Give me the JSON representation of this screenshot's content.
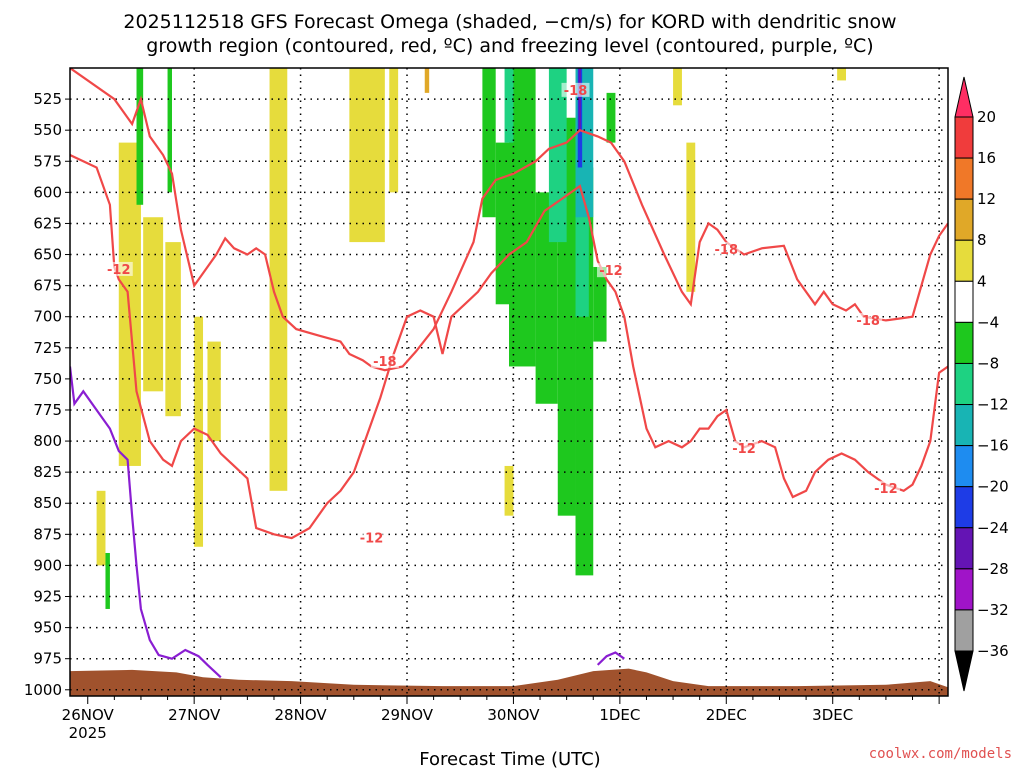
{
  "title_line1": "2025112518 GFS Forecast Omega (shaded, −cm/s) for KORD with dendritic snow",
  "title_line2": "growth region (contoured, red, ºC) and freezing level (contoured, purple, ºC)",
  "credit": "coolwx.com/models",
  "chart_data": {
    "type": "heatmap",
    "xlabel": "Forecast Time (UTC)",
    "ylabel": "",
    "x_ticks": [
      "26NOV",
      "27NOV",
      "28NOV",
      "29NOV",
      "30NOV",
      "1DEC",
      "2DEC",
      "3DEC"
    ],
    "x_year": "2025",
    "xlim_hours": [
      -4,
      194
    ],
    "y_ticks": [
      525,
      550,
      575,
      600,
      625,
      650,
      675,
      700,
      725,
      750,
      775,
      800,
      825,
      850,
      875,
      900,
      925,
      950,
      975,
      1000
    ],
    "ylim": [
      1005,
      500
    ],
    "grid": true,
    "colorbar": {
      "labels": [
        "20",
        "16",
        "12",
        "8",
        "4",
        "−4",
        "−8",
        "−12",
        "−16",
        "−20",
        "−24",
        "−28",
        "−32",
        "−36"
      ],
      "colors": [
        "#ff2e63",
        "#f03c3c",
        "#f07828",
        "#e0a828",
        "#e6dc3c",
        "#ffffff",
        "#1ec81e",
        "#1ed282",
        "#18b4b4",
        "#1e8cf0",
        "#1e3ce6",
        "#6414b4",
        "#a014c8",
        "#a0a0a0",
        "#000000"
      ]
    },
    "omega_shading": [
      {
        "value": 4,
        "color": "#e6dc3c",
        "regions": [
          {
            "t0": 7,
            "t1": 12,
            "top": 560,
            "bottom": 820
          },
          {
            "t0": 12.5,
            "t1": 17,
            "top": 620,
            "bottom": 760
          },
          {
            "t0": 17.5,
            "t1": 21,
            "top": 640,
            "bottom": 780
          },
          {
            "t0": 2,
            "t1": 4,
            "top": 840,
            "bottom": 900
          },
          {
            "t0": 24,
            "t1": 26,
            "top": 700,
            "bottom": 885
          },
          {
            "t0": 27,
            "t1": 30,
            "top": 720,
            "bottom": 800
          },
          {
            "t0": 41,
            "t1": 45,
            "top": 500,
            "bottom": 840
          },
          {
            "t0": 59,
            "t1": 67,
            "top": 500,
            "bottom": 640
          },
          {
            "t0": 68,
            "t1": 70,
            "top": 500,
            "bottom": 600
          },
          {
            "t0": 94,
            "t1": 96,
            "top": 820,
            "bottom": 860
          },
          {
            "t0": 132,
            "t1": 134,
            "top": 500,
            "bottom": 530
          },
          {
            "t0": 135,
            "t1": 137,
            "top": 560,
            "bottom": 680
          },
          {
            "t0": 169,
            "t1": 171,
            "top": 500,
            "bottom": 510
          }
        ]
      },
      {
        "value": 8,
        "color": "#e0a828",
        "regions": [
          {
            "t0": 76,
            "t1": 77,
            "top": 500,
            "bottom": 520
          }
        ]
      },
      {
        "value": -4,
        "color": "#1ec81e",
        "regions": [
          {
            "t0": 11,
            "t1": 12.5,
            "top": 500,
            "bottom": 610
          },
          {
            "t0": 18,
            "t1": 19,
            "top": 500,
            "bottom": 600
          },
          {
            "t0": 4,
            "t1": 5,
            "top": 890,
            "bottom": 935
          },
          {
            "t0": 89,
            "t1": 92,
            "top": 500,
            "bottom": 620
          },
          {
            "t0": 92,
            "t1": 95,
            "top": 560,
            "bottom": 690
          },
          {
            "t0": 95,
            "t1": 101,
            "top": 500,
            "bottom": 740
          },
          {
            "t0": 101,
            "t1": 106,
            "top": 600,
            "bottom": 770
          },
          {
            "t0": 106,
            "t1": 110,
            "top": 540,
            "bottom": 860
          },
          {
            "t0": 110,
            "t1": 114,
            "top": 580,
            "bottom": 908
          },
          {
            "t0": 114,
            "t1": 117,
            "top": 660,
            "bottom": 720
          },
          {
            "t0": 117,
            "t1": 119,
            "top": 520,
            "bottom": 560
          }
        ]
      },
      {
        "value": -8,
        "color": "#1ed282",
        "regions": [
          {
            "t0": 94,
            "t1": 96,
            "top": 500,
            "bottom": 560
          },
          {
            "t0": 104,
            "t1": 108,
            "top": 500,
            "bottom": 640
          },
          {
            "t0": 110,
            "t1": 113,
            "top": 560,
            "bottom": 700
          }
        ]
      },
      {
        "value": -12,
        "color": "#18b4b4",
        "regions": [
          {
            "t0": 110,
            "t1": 114,
            "top": 500,
            "bottom": 620
          }
        ]
      },
      {
        "value": -20,
        "color": "#1e3ce6",
        "regions": [
          {
            "t0": 110.5,
            "t1": 111.5,
            "top": 500,
            "bottom": 580
          }
        ]
      },
      {
        "value": -28,
        "color": "#6414b4",
        "regions": [
          {
            "t0": 110.7,
            "t1": 111.2,
            "top": 500,
            "bottom": 550
          }
        ]
      }
    ],
    "contours": [
      {
        "label": "-18",
        "color": "#f04848",
        "points": [
          [
            -4,
            500
          ],
          [
            6,
            525
          ],
          [
            10,
            545
          ],
          [
            12,
            525
          ],
          [
            14,
            555
          ],
          [
            17,
            570
          ],
          [
            19,
            585
          ],
          [
            21,
            630
          ],
          [
            24,
            675
          ],
          [
            26,
            665
          ],
          [
            29,
            650
          ],
          [
            31,
            637
          ],
          [
            33,
            645
          ],
          [
            36,
            650
          ],
          [
            38,
            645
          ],
          [
            40,
            650
          ],
          [
            42,
            680
          ],
          [
            44,
            700
          ],
          [
            47,
            710
          ],
          [
            52,
            715
          ],
          [
            57,
            720
          ],
          [
            59,
            730
          ],
          [
            62,
            735
          ],
          [
            64,
            740
          ],
          [
            67,
            743
          ],
          [
            71,
            740
          ],
          [
            74,
            728
          ],
          [
            78,
            710
          ],
          [
            82,
            680
          ],
          [
            87,
            640
          ],
          [
            89,
            605
          ],
          [
            92,
            590
          ],
          [
            96,
            585
          ],
          [
            101,
            575
          ],
          [
            104,
            565
          ],
          [
            108,
            560
          ],
          [
            111,
            550
          ],
          [
            115,
            555
          ],
          [
            118,
            560
          ],
          [
            121,
            575
          ],
          [
            125,
            610
          ],
          [
            130,
            650
          ],
          [
            134,
            680
          ],
          [
            136,
            690
          ],
          [
            138,
            640
          ],
          [
            140,
            625
          ],
          [
            142,
            630
          ],
          [
            144,
            640
          ],
          [
            148,
            650
          ],
          [
            152,
            645
          ],
          [
            157,
            643
          ],
          [
            160,
            670
          ],
          [
            164,
            690
          ],
          [
            166,
            680
          ],
          [
            168,
            690
          ],
          [
            171,
            695
          ],
          [
            173,
            690
          ],
          [
            175,
            700
          ],
          [
            180,
            703
          ],
          [
            186,
            700
          ],
          [
            188,
            675
          ],
          [
            190,
            650
          ],
          [
            192,
            635
          ],
          [
            194,
            625
          ]
        ]
      },
      {
        "label": "-12",
        "color": "#f04848",
        "points": [
          [
            -4,
            570
          ],
          [
            2,
            580
          ],
          [
            5,
            610
          ],
          [
            6,
            660
          ],
          [
            7,
            670
          ],
          [
            9,
            680
          ],
          [
            11,
            760
          ],
          [
            14,
            800
          ],
          [
            17,
            815
          ],
          [
            19,
            820
          ],
          [
            21,
            800
          ],
          [
            24,
            790
          ],
          [
            27,
            795
          ],
          [
            30,
            810
          ],
          [
            33,
            820
          ],
          [
            36,
            830
          ],
          [
            38,
            870
          ],
          [
            42,
            875
          ],
          [
            46,
            878
          ],
          [
            50,
            870
          ],
          [
            54,
            850
          ],
          [
            57,
            840
          ],
          [
            60,
            825
          ],
          [
            63,
            795
          ],
          [
            66,
            765
          ],
          [
            69,
            730
          ],
          [
            72,
            700
          ],
          [
            75,
            695
          ],
          [
            78,
            700
          ],
          [
            80,
            730
          ],
          [
            82,
            700
          ],
          [
            85,
            690
          ],
          [
            88,
            680
          ],
          [
            91,
            665
          ],
          [
            95,
            650
          ],
          [
            99,
            640
          ],
          [
            103,
            615
          ],
          [
            107,
            605
          ],
          [
            111,
            595
          ],
          [
            113,
            620
          ],
          [
            115,
            655
          ],
          [
            117,
            670
          ],
          [
            119,
            680
          ],
          [
            121,
            700
          ],
          [
            123,
            740
          ],
          [
            126,
            790
          ],
          [
            128,
            805
          ],
          [
            131,
            800
          ],
          [
            134,
            805
          ],
          [
            136,
            800
          ],
          [
            138,
            790
          ],
          [
            140,
            790
          ],
          [
            142,
            780
          ],
          [
            144,
            775
          ],
          [
            146,
            800
          ],
          [
            148,
            805
          ],
          [
            152,
            800
          ],
          [
            155,
            805
          ],
          [
            157,
            830
          ],
          [
            159,
            845
          ],
          [
            162,
            840
          ],
          [
            164,
            825
          ],
          [
            167,
            815
          ],
          [
            170,
            810
          ],
          [
            173,
            815
          ],
          [
            176,
            825
          ],
          [
            180,
            835
          ],
          [
            184,
            840
          ],
          [
            186,
            835
          ],
          [
            188,
            820
          ],
          [
            190,
            800
          ],
          [
            192,
            745
          ],
          [
            194,
            740
          ]
        ]
      },
      {
        "label": "",
        "color": "#8a1ed2",
        "points": [
          [
            -4,
            740
          ],
          [
            -3,
            770
          ],
          [
            -1,
            760
          ],
          [
            2,
            775
          ],
          [
            5,
            790
          ],
          [
            7,
            808
          ],
          [
            9,
            815
          ],
          [
            10,
            860
          ],
          [
            11,
            900
          ],
          [
            12,
            935
          ],
          [
            14,
            960
          ],
          [
            16,
            972
          ],
          [
            19,
            975
          ],
          [
            22,
            968
          ],
          [
            25,
            973
          ],
          [
            27,
            980
          ],
          [
            30,
            990
          ]
        ]
      },
      {
        "label": "",
        "color": "#8a1ed2",
        "points": [
          [
            115,
            980
          ],
          [
            117,
            973
          ],
          [
            119,
            970
          ],
          [
            121,
            975
          ]
        ]
      }
    ],
    "terrain_color": "#a0522d",
    "terrain_surface_hpa": [
      [
        -4,
        985
      ],
      [
        10,
        984
      ],
      [
        20,
        986
      ],
      [
        26,
        990
      ],
      [
        34,
        992
      ],
      [
        46,
        993
      ],
      [
        60,
        996
      ],
      [
        80,
        997
      ],
      [
        96,
        997
      ],
      [
        106,
        992
      ],
      [
        114,
        985
      ],
      [
        122,
        983
      ],
      [
        126,
        986
      ],
      [
        132,
        993
      ],
      [
        140,
        997
      ],
      [
        160,
        997
      ],
      [
        180,
        996
      ],
      [
        190,
        993
      ],
      [
        194,
        998
      ]
    ]
  }
}
